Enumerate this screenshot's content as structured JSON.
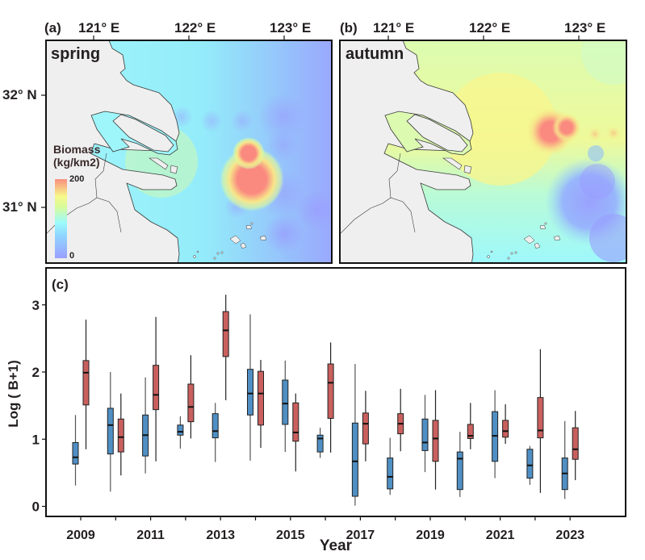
{
  "maps": [
    {
      "panel_label": "(a)",
      "season": "spring",
      "lon_ticks": [
        "121° E",
        "122° E",
        "123° E"
      ],
      "lat_ticks": [
        "32° N",
        "31° N"
      ],
      "colorbar": {
        "title_line1": "Biomass",
        "title_line2": "(kg/km2)",
        "max_label": "200",
        "min_label": "0",
        "range": [
          0,
          200
        ],
        "colors": [
          "#9aa0ff",
          "#8fd8ff",
          "#9dfbfb",
          "#f6f98a",
          "#fa8e7e"
        ]
      },
      "hotspots": [
        {
          "lon": 122.63,
          "lat": 31.27,
          "level": 200
        },
        {
          "lon": 122.58,
          "lat": 31.45,
          "level": 180
        }
      ]
    },
    {
      "panel_label": "(b)",
      "season": "autumn",
      "lon_ticks": [
        "121° E",
        "122° E",
        "123° E"
      ],
      "hotspots": [
        {
          "lon": 122.68,
          "lat": 31.68,
          "level": 200
        },
        {
          "lon": 123.15,
          "lat": 31.67,
          "level": 140
        },
        {
          "lon": 123.35,
          "lat": 31.67,
          "level": 140
        }
      ]
    }
  ],
  "chart_data": {
    "type": "box",
    "panel_label": "(c)",
    "title": "",
    "xlabel": "Year",
    "ylabel": "Log ( B+1)",
    "ylim": [
      -0.15,
      3.55
    ],
    "yticks": [
      0,
      1,
      2,
      3
    ],
    "xticks": [
      "2009",
      "2011",
      "2013",
      "2015",
      "2017",
      "2019",
      "2021",
      "2023"
    ],
    "categories": [
      "2009",
      "2010",
      "2011",
      "2012",
      "2013",
      "2014",
      "2015",
      "2016",
      "2017",
      "2018",
      "2019",
      "2020",
      "2021",
      "2022",
      "2023"
    ],
    "series": [
      {
        "name": "spring",
        "color": "#4f8fc4",
        "boxes": [
          {
            "min": 0.31,
            "q1": 0.63,
            "median": 0.73,
            "q3": 0.95,
            "max": 1.36
          },
          {
            "min": 0.22,
            "q1": 0.78,
            "median": 1.21,
            "q3": 1.46,
            "max": 2.0
          },
          {
            "min": 0.49,
            "q1": 0.75,
            "median": 1.06,
            "q3": 1.36,
            "max": 1.92
          },
          {
            "min": 0.86,
            "q1": 1.06,
            "median": 1.11,
            "q3": 1.21,
            "max": 1.34
          },
          {
            "min": 0.66,
            "q1": 1.02,
            "median": 1.12,
            "q3": 1.38,
            "max": 1.54
          },
          {
            "min": 0.68,
            "q1": 1.36,
            "median": 1.68,
            "q3": 2.04,
            "max": 2.86
          },
          {
            "min": 0.81,
            "q1": 1.22,
            "median": 1.53,
            "q3": 1.88,
            "max": 2.17
          },
          {
            "min": 0.72,
            "q1": 0.81,
            "median": 1.01,
            "q3": 1.06,
            "max": 1.17
          },
          {
            "min": 0.01,
            "q1": 0.15,
            "median": 0.67,
            "q3": 1.24,
            "max": 2.12
          },
          {
            "min": 0.17,
            "q1": 0.26,
            "median": 0.44,
            "q3": 0.72,
            "max": 1.02
          },
          {
            "min": 0.51,
            "q1": 0.83,
            "median": 0.95,
            "q3": 1.3,
            "max": 1.66
          },
          {
            "min": 0.14,
            "q1": 0.25,
            "median": 0.71,
            "q3": 0.81,
            "max": 1.11
          },
          {
            "min": 0.42,
            "q1": 0.67,
            "median": 1.05,
            "q3": 1.41,
            "max": 1.73
          },
          {
            "min": 0.32,
            "q1": 0.42,
            "median": 0.61,
            "q3": 0.85,
            "max": 0.9
          },
          {
            "min": 0.11,
            "q1": 0.25,
            "median": 0.49,
            "q3": 0.72,
            "max": 1.27
          }
        ]
      },
      {
        "name": "autumn",
        "color": "#c9605e",
        "boxes": [
          {
            "min": 0.85,
            "q1": 1.51,
            "median": 1.99,
            "q3": 2.17,
            "max": 2.78
          },
          {
            "min": 0.46,
            "q1": 0.81,
            "median": 1.03,
            "q3": 1.3,
            "max": 1.68
          },
          {
            "min": 0.67,
            "q1": 1.44,
            "median": 1.66,
            "q3": 2.1,
            "max": 2.82
          },
          {
            "min": 1.01,
            "q1": 1.26,
            "median": 1.48,
            "q3": 1.82,
            "max": 2.25
          },
          {
            "min": 1.58,
            "q1": 2.23,
            "median": 2.62,
            "q3": 2.9,
            "max": 3.15
          },
          {
            "min": 0.87,
            "q1": 1.21,
            "median": 1.68,
            "q3": 2.01,
            "max": 2.18
          },
          {
            "min": 0.52,
            "q1": 0.97,
            "median": 1.1,
            "q3": 1.54,
            "max": 1.68
          },
          {
            "min": 0.8,
            "q1": 1.31,
            "median": 1.84,
            "q3": 2.12,
            "max": 2.44
          },
          {
            "min": 0.67,
            "q1": 0.93,
            "median": 1.23,
            "q3": 1.39,
            "max": 1.72
          },
          {
            "min": 0.82,
            "q1": 1.08,
            "median": 1.23,
            "q3": 1.38,
            "max": 1.75
          },
          {
            "min": 0.25,
            "q1": 0.67,
            "median": 1.01,
            "q3": 1.28,
            "max": 1.73
          },
          {
            "min": 0.85,
            "q1": 1.01,
            "median": 1.05,
            "q3": 1.22,
            "max": 1.54
          },
          {
            "min": 0.93,
            "q1": 1.03,
            "median": 1.12,
            "q3": 1.28,
            "max": 1.52
          },
          {
            "min": 0.2,
            "q1": 1.02,
            "median": 1.13,
            "q3": 1.62,
            "max": 2.34
          },
          {
            "min": 0.39,
            "q1": 0.7,
            "median": 0.85,
            "q3": 1.17,
            "max": 1.42
          }
        ]
      }
    ]
  }
}
